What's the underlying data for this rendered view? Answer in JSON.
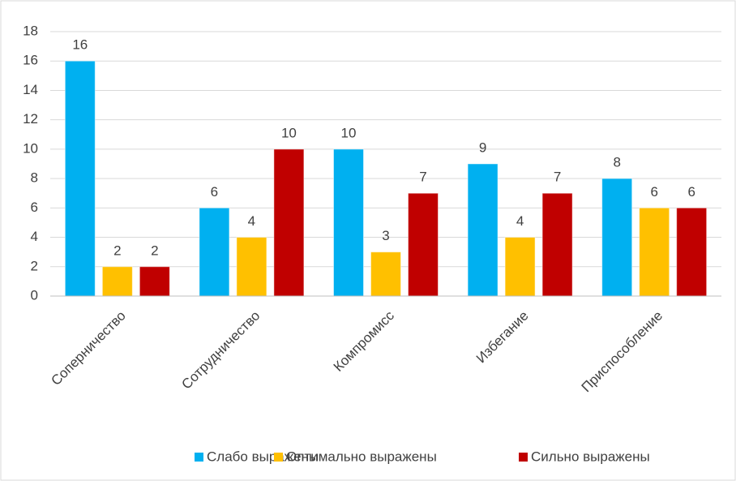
{
  "chart_data": {
    "type": "bar",
    "categories": [
      "Соперничество",
      "Сотрудничество",
      "Компромисс",
      "Избегание",
      "Приспособление"
    ],
    "series": [
      {
        "name": "Слабо выражены",
        "color": "#00b0f0",
        "values": [
          16,
          6,
          10,
          9,
          8
        ]
      },
      {
        "name": "Оптимально выражены",
        "color": "#ffc000",
        "values": [
          2,
          4,
          3,
          4,
          6
        ]
      },
      {
        "name": "Сильно выражены",
        "color": "#c00000",
        "values": [
          2,
          10,
          7,
          7,
          6
        ]
      }
    ],
    "ylim": [
      0,
      18
    ],
    "yticks": [
      0,
      2,
      4,
      6,
      8,
      10,
      12,
      14,
      16,
      18
    ],
    "grid": true,
    "legend": "bottom"
  }
}
